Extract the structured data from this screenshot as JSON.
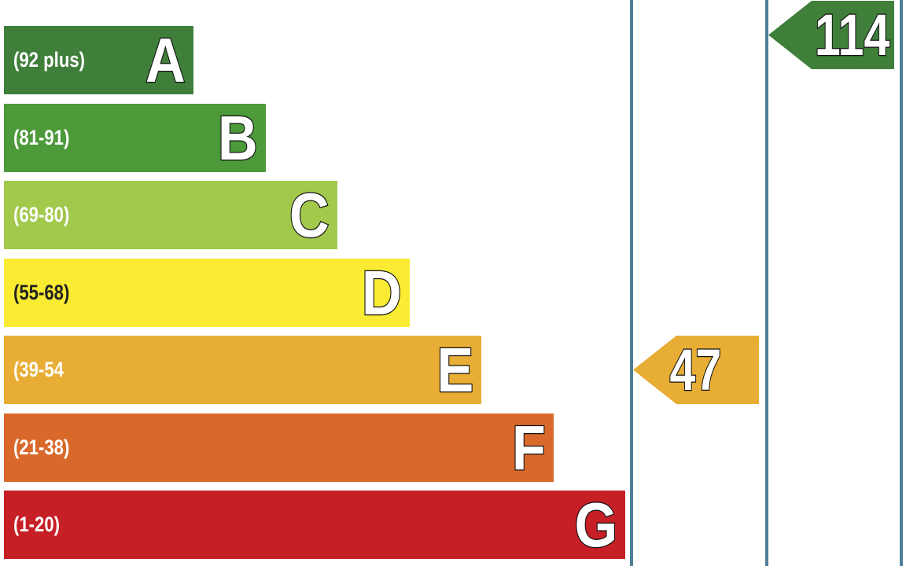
{
  "chart_data": {
    "type": "bar",
    "orientation": "horizontal",
    "bands": [
      {
        "letter": "A",
        "range": "(92 plus)",
        "color": "#3f7f3a"
      },
      {
        "letter": "B",
        "range": "(81-91)",
        "color": "#4c9a3a"
      },
      {
        "letter": "C",
        "range": "(69-80)",
        "color": "#a2c84c"
      },
      {
        "letter": "D",
        "range": "(55-68)",
        "color": "#f9ec33"
      },
      {
        "letter": "E",
        "range": "(39-54",
        "color": "#e8ad34"
      },
      {
        "letter": "F",
        "range": "(21-38)",
        "color": "#d9692b"
      },
      {
        "letter": "G",
        "range": "(1-20)",
        "color": "#c61f26"
      }
    ],
    "ratings": [
      {
        "value": "47",
        "band": "E",
        "color": "#e8ad34"
      },
      {
        "value": "114",
        "band": "A",
        "color": "#3f7f3a"
      }
    ],
    "divider_color": "#4f7f97"
  }
}
